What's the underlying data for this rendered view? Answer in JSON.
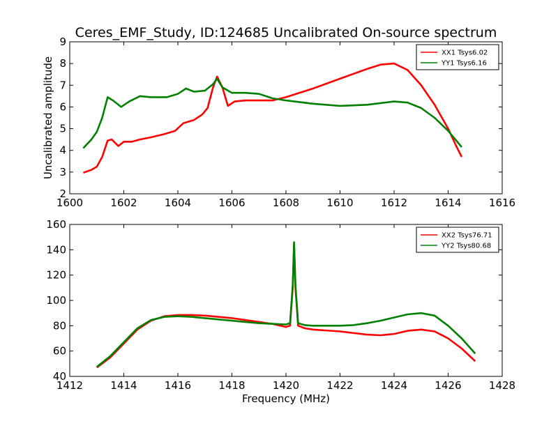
{
  "figure": {
    "title": "Ceres_EMF_Study, ID:124685 Uncalibrated On-source spectrum"
  },
  "chart_data": [
    {
      "type": "line",
      "title": "Ceres_EMF_Study, ID:124685 Uncalibrated On-source spectrum",
      "xlabel": "",
      "ylabel": "Uncalibrated amplitude",
      "xlim": [
        1600,
        1616
      ],
      "ylim": [
        2,
        9
      ],
      "xticks": [
        1600,
        1602,
        1604,
        1606,
        1608,
        1610,
        1612,
        1614,
        1616
      ],
      "yticks": [
        2,
        3,
        4,
        5,
        6,
        7,
        8,
        9
      ],
      "legend_position": "top-right",
      "grid": false,
      "series": [
        {
          "name": "XX1 Tsys6.02",
          "color": "#ff0000",
          "points": [
            [
              1600.5,
              2.97
            ],
            [
              1600.8,
              3.1
            ],
            [
              1601.0,
              3.25
            ],
            [
              1601.2,
              3.7
            ],
            [
              1601.4,
              4.45
            ],
            [
              1601.55,
              4.5
            ],
            [
              1601.8,
              4.2
            ],
            [
              1602.0,
              4.4
            ],
            [
              1602.3,
              4.4
            ],
            [
              1602.6,
              4.5
            ],
            [
              1603.0,
              4.6
            ],
            [
              1603.5,
              4.75
            ],
            [
              1603.9,
              4.9
            ],
            [
              1604.2,
              5.25
            ],
            [
              1604.6,
              5.4
            ],
            [
              1604.9,
              5.65
            ],
            [
              1605.1,
              5.95
            ],
            [
              1605.3,
              6.9
            ],
            [
              1605.45,
              7.4
            ],
            [
              1605.65,
              6.9
            ],
            [
              1605.85,
              6.05
            ],
            [
              1606.1,
              6.25
            ],
            [
              1606.5,
              6.3
            ],
            [
              1606.8,
              6.3
            ],
            [
              1607.5,
              6.3
            ],
            [
              1608.0,
              6.45
            ],
            [
              1609.0,
              6.85
            ],
            [
              1610.0,
              7.3
            ],
            [
              1611.0,
              7.75
            ],
            [
              1611.5,
              7.95
            ],
            [
              1612.0,
              8.0
            ],
            [
              1612.5,
              7.7
            ],
            [
              1613.0,
              7.0
            ],
            [
              1613.5,
              6.1
            ],
            [
              1614.0,
              5.0
            ],
            [
              1614.3,
              4.2
            ],
            [
              1614.5,
              3.7
            ]
          ]
        },
        {
          "name": "YY1 Tsys6.16",
          "color": "#008000",
          "points": [
            [
              1600.5,
              4.1
            ],
            [
              1600.8,
              4.5
            ],
            [
              1601.0,
              4.85
            ],
            [
              1601.2,
              5.5
            ],
            [
              1601.4,
              6.45
            ],
            [
              1601.6,
              6.3
            ],
            [
              1601.9,
              6.0
            ],
            [
              1602.2,
              6.25
            ],
            [
              1602.6,
              6.5
            ],
            [
              1603.0,
              6.45
            ],
            [
              1603.6,
              6.45
            ],
            [
              1604.0,
              6.6
            ],
            [
              1604.3,
              6.85
            ],
            [
              1604.6,
              6.7
            ],
            [
              1605.0,
              6.75
            ],
            [
              1605.3,
              7.05
            ],
            [
              1605.45,
              7.3
            ],
            [
              1605.65,
              6.9
            ],
            [
              1606.0,
              6.65
            ],
            [
              1606.5,
              6.65
            ],
            [
              1607.0,
              6.6
            ],
            [
              1607.5,
              6.4
            ],
            [
              1608.0,
              6.3
            ],
            [
              1609.0,
              6.15
            ],
            [
              1610.0,
              6.05
            ],
            [
              1611.0,
              6.1
            ],
            [
              1612.0,
              6.25
            ],
            [
              1612.5,
              6.2
            ],
            [
              1613.0,
              5.95
            ],
            [
              1613.5,
              5.5
            ],
            [
              1614.0,
              4.9
            ],
            [
              1614.5,
              4.15
            ]
          ]
        }
      ]
    },
    {
      "type": "line",
      "title": "",
      "xlabel": "Frequency (MHz)",
      "ylabel": "",
      "xlim": [
        1412,
        1428
      ],
      "ylim": [
        40,
        160
      ],
      "xticks": [
        1412,
        1414,
        1416,
        1418,
        1420,
        1422,
        1424,
        1426,
        1428
      ],
      "yticks": [
        40,
        60,
        80,
        100,
        120,
        140,
        160
      ],
      "legend_position": "top-right",
      "grid": false,
      "series": [
        {
          "name": "XX2 Tsys76.71",
          "color": "#ff0000",
          "points": [
            [
              1413.0,
              47
            ],
            [
              1413.5,
              55
            ],
            [
              1414.0,
              66
            ],
            [
              1414.5,
              77
            ],
            [
              1415.0,
              84
            ],
            [
              1415.5,
              87.5
            ],
            [
              1416.0,
              88.5
            ],
            [
              1416.5,
              88.5
            ],
            [
              1417.0,
              88
            ],
            [
              1417.5,
              87
            ],
            [
              1418.0,
              86
            ],
            [
              1418.5,
              84.5
            ],
            [
              1419.0,
              83
            ],
            [
              1419.5,
              81.5
            ],
            [
              1420.0,
              79
            ],
            [
              1420.15,
              80
            ],
            [
              1420.25,
              110
            ],
            [
              1420.3,
              145
            ],
            [
              1420.35,
              110
            ],
            [
              1420.45,
              80
            ],
            [
              1420.7,
              78
            ],
            [
              1421.0,
              77
            ],
            [
              1422.0,
              75.5
            ],
            [
              1423.0,
              73
            ],
            [
              1423.5,
              72.5
            ],
            [
              1424.0,
              73.5
            ],
            [
              1424.5,
              76
            ],
            [
              1425.0,
              77
            ],
            [
              1425.5,
              75.5
            ],
            [
              1426.0,
              70
            ],
            [
              1426.5,
              62
            ],
            [
              1427.0,
              52
            ]
          ]
        },
        {
          "name": "YY2 Tsys80.68",
          "color": "#008000",
          "points": [
            [
              1413.0,
              47.5
            ],
            [
              1413.5,
              56
            ],
            [
              1414.0,
              67
            ],
            [
              1414.5,
              78
            ],
            [
              1415.0,
              84.5
            ],
            [
              1415.5,
              87
            ],
            [
              1416.0,
              87.5
            ],
            [
              1416.5,
              87
            ],
            [
              1417.0,
              86
            ],
            [
              1417.5,
              85
            ],
            [
              1418.0,
              84
            ],
            [
              1418.5,
              83
            ],
            [
              1419.0,
              82
            ],
            [
              1419.5,
              81.5
            ],
            [
              1420.0,
              81
            ],
            [
              1420.15,
              82
            ],
            [
              1420.25,
              112
            ],
            [
              1420.3,
              146
            ],
            [
              1420.35,
              112
            ],
            [
              1420.45,
              82
            ],
            [
              1420.7,
              80.5
            ],
            [
              1421.0,
              80
            ],
            [
              1422.0,
              80
            ],
            [
              1422.5,
              80.5
            ],
            [
              1423.0,
              82
            ],
            [
              1423.5,
              84
            ],
            [
              1424.0,
              86.5
            ],
            [
              1424.5,
              89
            ],
            [
              1425.0,
              90
            ],
            [
              1425.5,
              88
            ],
            [
              1426.0,
              80
            ],
            [
              1426.5,
              70
            ],
            [
              1427.0,
              58
            ]
          ]
        }
      ]
    }
  ]
}
